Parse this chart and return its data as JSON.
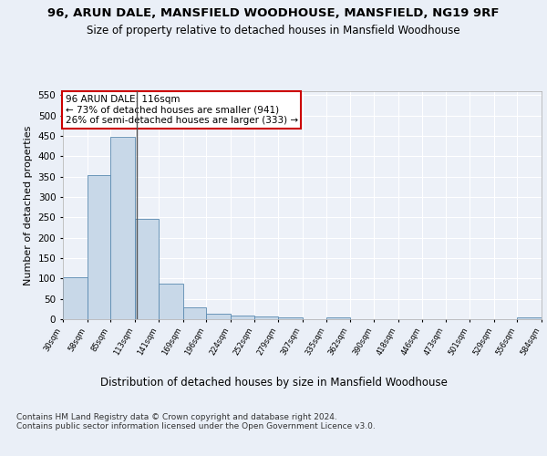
{
  "title1": "96, ARUN DALE, MANSFIELD WOODHOUSE, MANSFIELD, NG19 9RF",
  "title2": "Size of property relative to detached houses in Mansfield Woodhouse",
  "xlabel": "Distribution of detached houses by size in Mansfield Woodhouse",
  "ylabel": "Number of detached properties",
  "footnote": "Contains HM Land Registry data © Crown copyright and database right 2024.\nContains public sector information licensed under the Open Government Licence v3.0.",
  "bin_edges": [
    30,
    58,
    85,
    113,
    141,
    169,
    196,
    224,
    252,
    279,
    307,
    335,
    362,
    390,
    418,
    446,
    473,
    501,
    529,
    556,
    584
  ],
  "bar_heights": [
    103,
    353,
    447,
    246,
    88,
    30,
    13,
    9,
    6,
    5,
    0,
    5,
    0,
    0,
    0,
    0,
    0,
    0,
    0,
    5
  ],
  "bar_color": "#c8d8e8",
  "bar_edge_color": "#5a8ab0",
  "property_size": 116,
  "property_label": "96 ARUN DALE: 116sqm",
  "annotation_line1": "← 73% of detached houses are smaller (941)",
  "annotation_line2": "26% of semi-detached houses are larger (333) →",
  "annotation_box_color": "#ffffff",
  "annotation_box_edge": "#cc0000",
  "vline_color": "#555555",
  "ylim": [
    0,
    560
  ],
  "yticks": [
    0,
    50,
    100,
    150,
    200,
    250,
    300,
    350,
    400,
    450,
    500,
    550
  ],
  "bg_color": "#eaeff7",
  "plot_bg_color": "#edf1f8",
  "grid_color": "#ffffff",
  "title1_fontsize": 9.5,
  "title2_fontsize": 8.5,
  "xlabel_fontsize": 8.5,
  "ylabel_fontsize": 8,
  "footnote_fontsize": 6.5,
  "annotation_fontsize": 7.5
}
